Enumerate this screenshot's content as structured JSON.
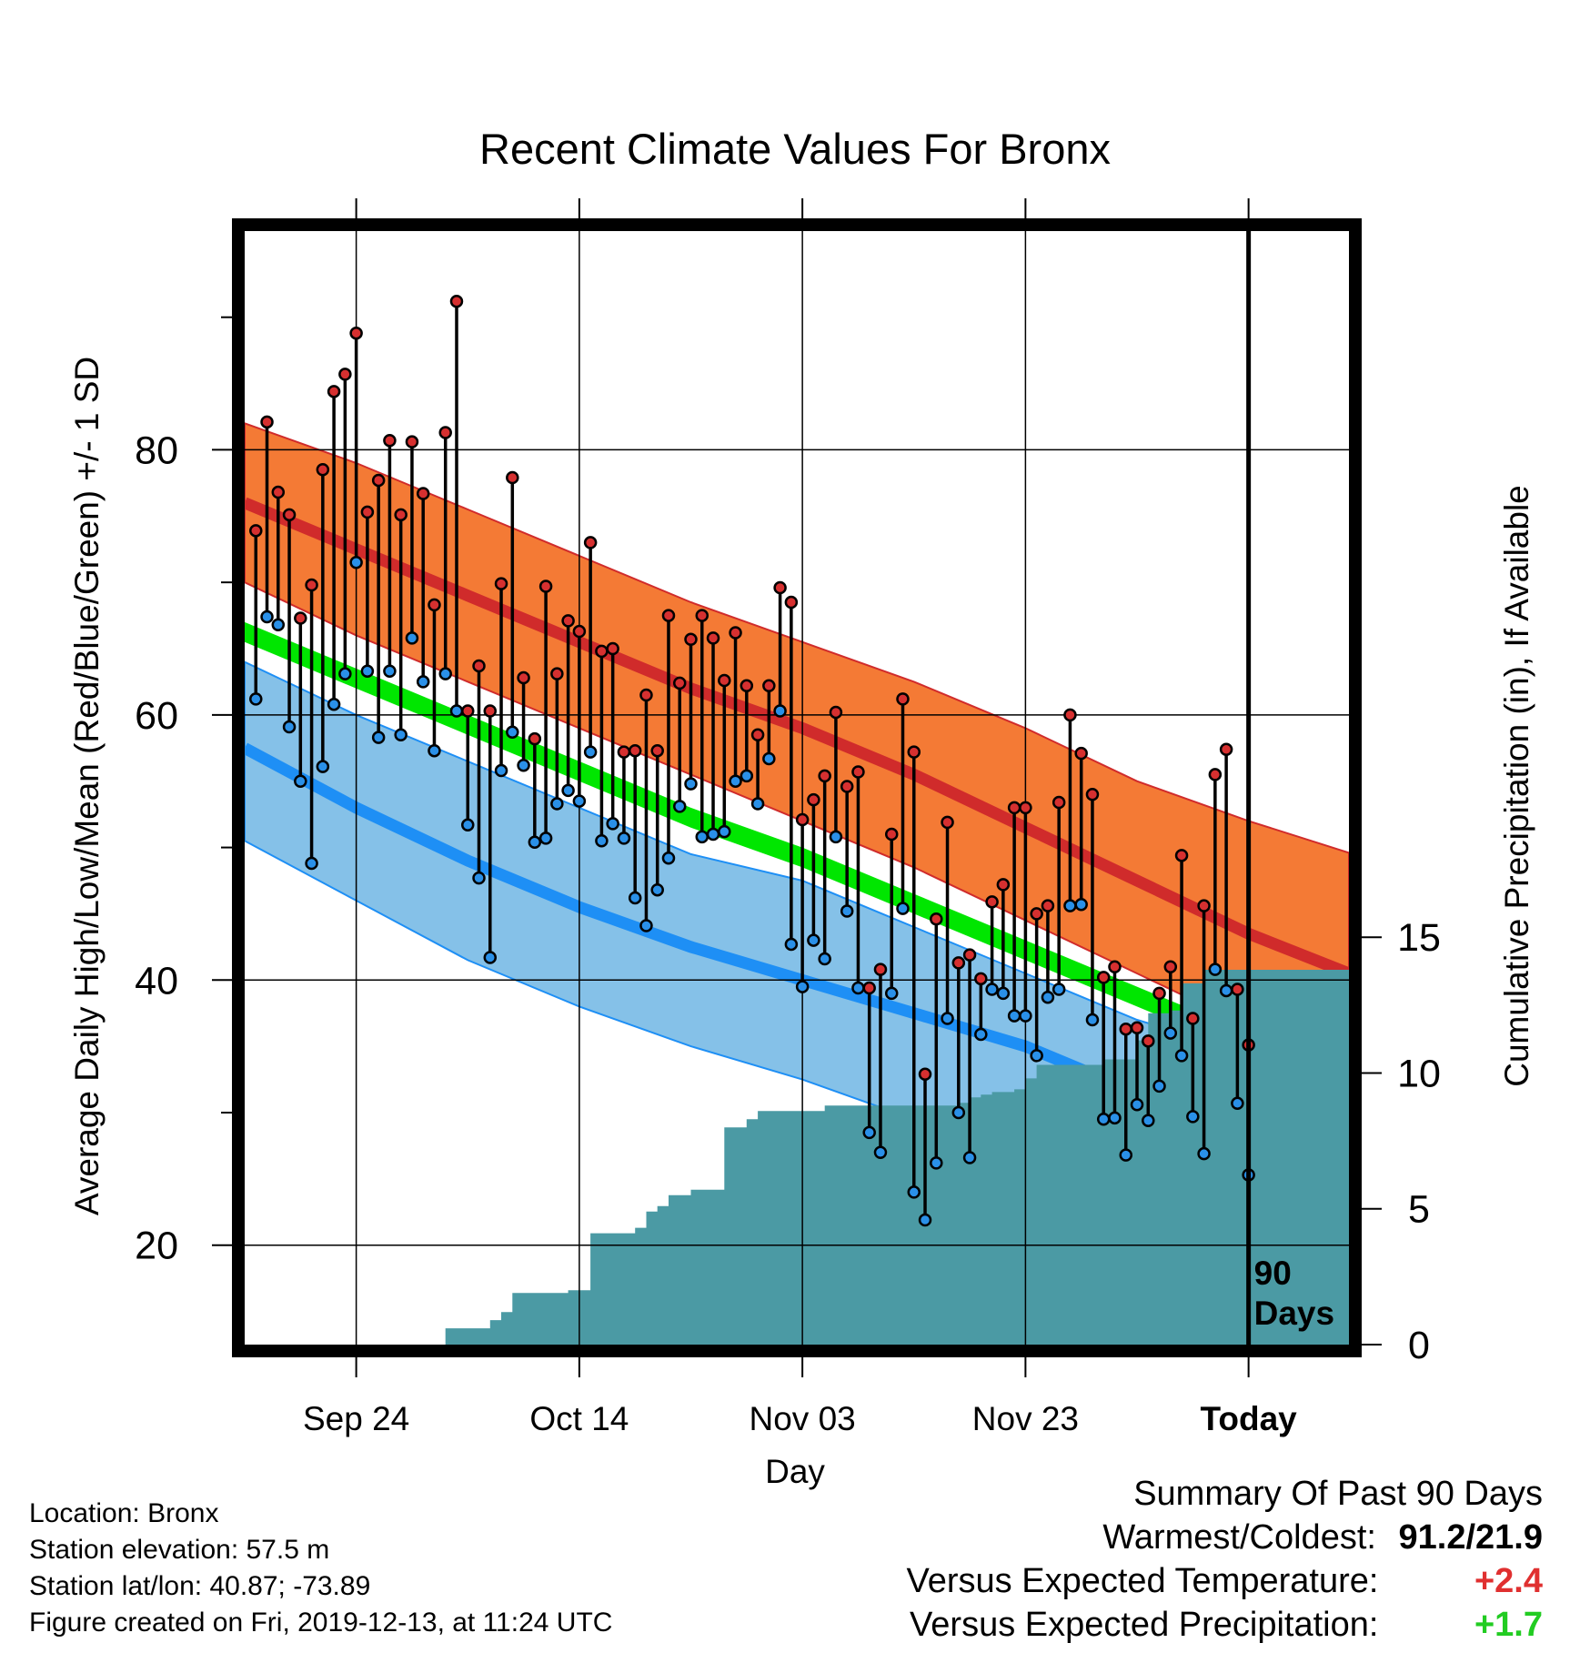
{
  "chart_data": {
    "type": "line",
    "title": "Recent Climate Values For Bronx",
    "xlabel": "Day",
    "ylabel": "Average Daily High/Low/Mean (Red/Blue/Green) +/- 1 SD",
    "ylabel_right": "Cumulative Precipitation (in), If Available",
    "ylim": [
      12.5,
      96.5
    ],
    "ylim_right": [
      0,
      41
    ],
    "yticks": [
      20,
      40,
      60,
      80
    ],
    "yticks_right": [
      0,
      5,
      10,
      15
    ],
    "x_start_day": -90,
    "x_end_day": 9,
    "xticks": [
      {
        "day": -80,
        "label": "Sep 24"
      },
      {
        "day": -60,
        "label": "Oct 14"
      },
      {
        "day": -40,
        "label": "Nov 03"
      },
      {
        "day": -20,
        "label": "Nov 23"
      },
      {
        "day": 0,
        "label": "Today"
      }
    ],
    "today_marker_label": [
      "90",
      "Days"
    ],
    "grid": true,
    "colors": {
      "high_band": "#f47a35",
      "high_mean": "#d02b2b",
      "low_band": "#85c1e8",
      "low_mean": "#1e8ff5",
      "mean_band": "#00e600",
      "precip": "#4b9aa4",
      "high_point": "#d63030",
      "low_point": "#2a90e8",
      "positive_anomaly": "#e03030",
      "precip_anomaly": "#22cc22"
    },
    "normals": {
      "days": [
        -90,
        -80,
        -70,
        -60,
        -50,
        -40,
        -30,
        -20,
        -10,
        0,
        9
      ],
      "high_upper": [
        82,
        79,
        75.5,
        72,
        68.5,
        65.5,
        62.5,
        59,
        55,
        52,
        49.6
      ],
      "high_mean": [
        76,
        72.5,
        69,
        65.5,
        62,
        59,
        55.5,
        51.5,
        47.5,
        43.5,
        40.5
      ],
      "high_lower": [
        70,
        66,
        62.5,
        59,
        55.5,
        52,
        48.5,
        44.5,
        40.5,
        36.5,
        33.5
      ],
      "mean_upper": [
        67,
        63.5,
        60,
        56.5,
        53,
        50,
        46.5,
        43,
        39.5,
        36,
        33.5
      ],
      "mean_lower": [
        65.5,
        62,
        58.5,
        55,
        51.5,
        48.5,
        45,
        41.5,
        38,
        34.5,
        32
      ],
      "low_upper": [
        64,
        60,
        56.5,
        53,
        49.5,
        47.5,
        44,
        40.5,
        37,
        34.5,
        35
      ],
      "low_mean": [
        57.5,
        53,
        49,
        45.5,
        42.5,
        40,
        37.5,
        35,
        31.5,
        29,
        26.5
      ],
      "low_lower": [
        50.5,
        46,
        41.5,
        38,
        35,
        32.5,
        29.5,
        26,
        23,
        19.5,
        17
      ]
    },
    "series": [
      {
        "name": "High",
        "values": [
          73.9,
          82.1,
          76.8,
          75.1,
          67.3,
          69.8,
          78.5,
          84.4,
          85.7,
          88.8,
          75.3,
          77.7,
          80.7,
          75.1,
          80.6,
          76.7,
          68.3,
          81.3,
          91.2,
          60.3,
          63.7,
          60.3,
          69.9,
          77.9,
          62.8,
          58.2,
          69.7,
          63.1,
          67.1,
          66.3,
          73.0,
          64.8,
          65.0,
          57.2,
          57.3,
          61.5,
          57.3,
          67.5,
          62.4,
          65.7,
          67.5,
          65.8,
          62.6,
          66.2,
          62.2,
          58.5,
          62.2,
          69.6,
          68.5,
          52.1,
          53.6,
          55.4,
          60.2,
          54.6,
          55.7,
          39.4,
          40.8,
          51.0,
          61.2,
          57.2,
          32.9,
          44.6,
          51.9,
          41.3,
          41.9,
          40.1,
          45.9,
          47.2,
          53.0,
          53.0,
          45.0,
          45.6,
          53.4,
          60.0,
          57.1,
          54.0,
          40.2,
          41.0,
          36.3,
          36.4,
          35.4,
          39.0,
          41.0,
          49.4,
          37.1,
          45.6,
          55.5,
          57.4,
          39.3,
          35.1
        ]
      },
      {
        "name": "Low",
        "values": [
          61.2,
          67.4,
          66.8,
          59.1,
          55.0,
          48.8,
          56.1,
          60.8,
          63.1,
          71.5,
          63.3,
          58.3,
          63.3,
          58.5,
          65.8,
          62.5,
          57.3,
          63.1,
          60.3,
          51.7,
          47.7,
          41.7,
          55.8,
          58.7,
          56.2,
          50.4,
          50.7,
          53.3,
          54.3,
          53.5,
          57.2,
          50.5,
          51.8,
          50.7,
          46.2,
          44.1,
          46.8,
          49.2,
          53.1,
          54.8,
          50.8,
          51.0,
          51.2,
          55.0,
          55.4,
          53.3,
          56.7,
          60.3,
          42.7,
          39.5,
          43.0,
          41.6,
          50.8,
          45.2,
          39.4,
          28.5,
          27.0,
          39.0,
          45.4,
          24.0,
          21.9,
          26.2,
          37.1,
          30.0,
          26.6,
          35.9,
          39.3,
          39.0,
          37.3,
          37.3,
          34.3,
          38.7,
          39.3,
          45.6,
          45.7,
          37.0,
          29.5,
          29.6,
          26.8,
          30.6,
          29.4,
          32.0,
          36.0,
          34.3,
          29.7,
          26.9,
          40.8,
          39.2,
          30.7,
          25.3
        ]
      }
    ],
    "precip_cumulative": {
      "days": [
        -72,
        -71,
        -69,
        -68,
        -67,
        -66,
        -63,
        -62,
        -61,
        -59,
        -58,
        -57,
        -55,
        -54,
        -53,
        -52,
        -51,
        -50,
        -49,
        -48,
        -47,
        -46,
        -45,
        -44,
        -43,
        -42,
        -40,
        -38,
        -36,
        -35,
        -33,
        -32,
        -30,
        -29,
        -27,
        -26,
        -25,
        -24,
        -23,
        -22,
        -21,
        -20,
        -19,
        -18,
        -16,
        -15,
        -14,
        -13,
        -11,
        -10,
        -9,
        -8,
        -7,
        -6,
        -5,
        -4,
        -3,
        -2,
        -1,
        0,
        9
      ],
      "values": [
        0.6,
        0.6,
        0.6,
        0.9,
        1.2,
        1.9,
        1.9,
        1.9,
        2.0,
        4.1,
        4.1,
        4.1,
        4.3,
        4.9,
        5.1,
        5.5,
        5.5,
        5.7,
        5.7,
        5.7,
        8.0,
        8.0,
        8.3,
        8.6,
        8.6,
        8.6,
        8.6,
        8.8,
        8.8,
        8.8,
        8.8,
        8.8,
        8.8,
        8.8,
        8.8,
        8.9,
        9.1,
        9.2,
        9.3,
        9.3,
        9.4,
        9.8,
        10.3,
        10.3,
        10.3,
        10.3,
        10.3,
        10.5,
        10.5,
        11.2,
        12.2,
        12.2,
        12.3,
        13.3,
        13.3,
        13.8,
        13.8,
        13.8,
        13.8,
        13.8,
        13.8
      ]
    }
  },
  "info": {
    "location": "Location: Bronx",
    "elevation": "Station elevation: 57.5 m",
    "latlon": "Station lat/lon: 40.87; -73.89",
    "created": "Figure created on Fri, 2019-12-13, at 11:24 UTC"
  },
  "summary": {
    "heading": "Summary Of Past 90 Days",
    "warmest_label": "Warmest/Coldest:",
    "warmest_value": "91.2/21.9",
    "temp_label": "Versus Expected Temperature:",
    "temp_value": "+2.4",
    "precip_label": "Versus Expected Precipitation:",
    "precip_value": "+1.7"
  }
}
